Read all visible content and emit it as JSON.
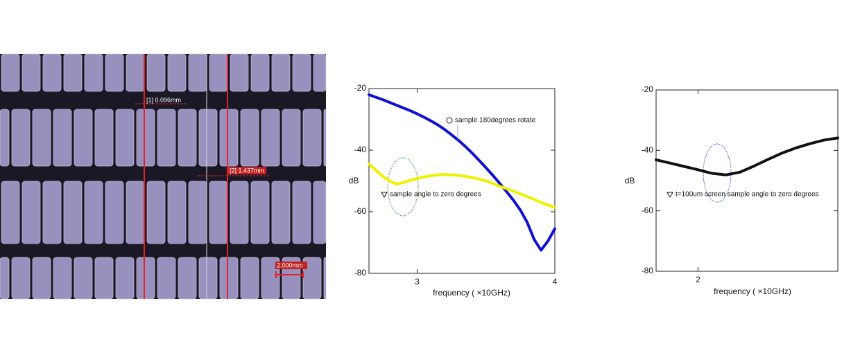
{
  "image": {
    "annotations": [
      "[1] 0.096mm",
      "[2] 1.437mm"
    ],
    "scale_bar": "2.000mm"
  },
  "chart_data": [
    {
      "type": "line",
      "x_label": "frequency ( ×10GHz)",
      "y_label": "dB",
      "x": [
        2.65,
        2.7,
        2.75,
        2.8,
        2.85,
        2.9,
        2.95,
        3.0,
        3.05,
        3.1,
        3.15,
        3.2,
        3.25,
        3.3,
        3.35,
        3.4,
        3.45,
        3.5,
        3.55,
        3.6,
        3.65,
        3.7,
        3.75,
        3.8,
        3.85,
        3.9,
        3.95,
        4.0
      ],
      "xlim": [
        2.65,
        4.0
      ],
      "xticks": [
        3,
        4
      ],
      "ylim": [
        -80,
        -20
      ],
      "yticks": [
        -20,
        -40,
        -60,
        -80
      ],
      "series": [
        {
          "name": "sample 180degrees rotate",
          "color": "#1010d0",
          "values": [
            -22,
            -22.8,
            -23.6,
            -24.5,
            -25.4,
            -26.3,
            -27.2,
            -28.2,
            -29.3,
            -30.5,
            -31.8,
            -33.3,
            -35,
            -36.8,
            -38.8,
            -41,
            -43.3,
            -45.7,
            -48.2,
            -50.8,
            -53.5,
            -56.3,
            -59.5,
            -63.5,
            -69,
            -72.5,
            -69.5,
            -65.5
          ]
        },
        {
          "name": "sample angle to zero degrees",
          "color": "#f0f000",
          "values": [
            -44.5,
            -46.5,
            -48.5,
            -50,
            -51,
            -50.5,
            -49.8,
            -49.2,
            -48.7,
            -48.3,
            -48,
            -47.9,
            -48,
            -48.2,
            -48.5,
            -48.9,
            -49.4,
            -50,
            -50.8,
            -51.7,
            -52.5,
            -53.3,
            -54.2,
            -55.1,
            -56,
            -57,
            -57.8,
            -58.6
          ]
        }
      ]
    },
    {
      "type": "line",
      "x_label": "frequency ( ×10GHz)",
      "y_label": "dB",
      "x": [
        1.7,
        1.8,
        1.9,
        2.0,
        2.1,
        2.2,
        2.3,
        2.4,
        2.5,
        2.6,
        2.7,
        2.8,
        2.9,
        3.0
      ],
      "xlim": [
        1.7,
        3.0
      ],
      "xticks": [
        2
      ],
      "ylim": [
        -80,
        -20
      ],
      "yticks": [
        -20,
        -40,
        -60,
        -80
      ],
      "series": [
        {
          "name": "t=100um screen sample angle to zero degrees",
          "color": "#111111",
          "values": [
            -43.1,
            -44.2,
            -45.3,
            -46.4,
            -47.6,
            -48.1,
            -47.2,
            -45.2,
            -43,
            -40.9,
            -39.2,
            -37.8,
            -36.6,
            -35.9
          ]
        }
      ]
    }
  ]
}
